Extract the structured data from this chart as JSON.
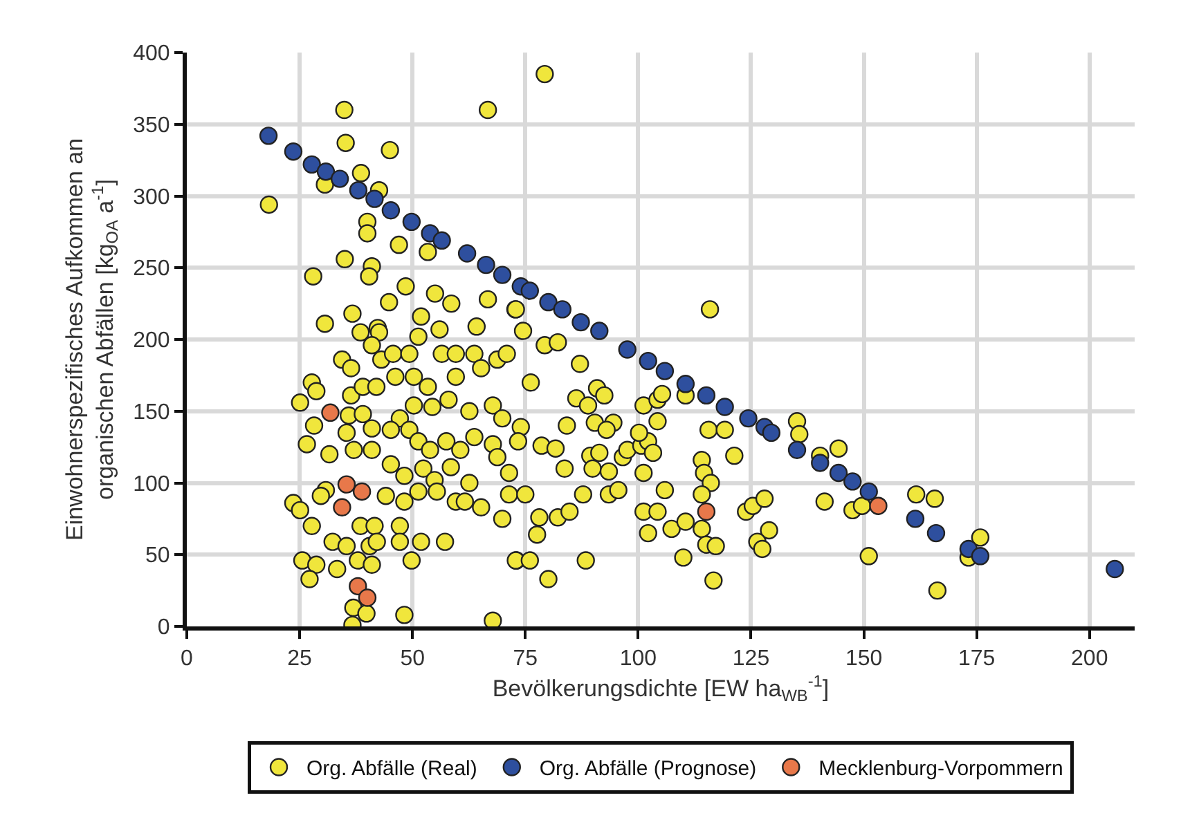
{
  "chart_data": {
    "type": "scatter",
    "xlabel": "Bevölkerungsdichte [EW ha$_{WB}$$^{-1}$]",
    "ylabel": "Einwohnerspezifisches Aufkommen an organischen Abfällen [kg$_{OA}$ a$^{-1}$]",
    "xlim": [
      0,
      210
    ],
    "ylim": [
      0,
      400
    ],
    "xticks": [
      0,
      25,
      50,
      75,
      100,
      125,
      150,
      175,
      200
    ],
    "yticks": [
      0,
      50,
      100,
      150,
      200,
      250,
      300,
      350,
      400
    ],
    "grid": true,
    "legend": "bottom",
    "marker": "circle",
    "series": [
      {
        "name": "Org. Abfälle (Real)",
        "color": "#f0e63c",
        "x": [
          34.9,
          35.2,
          45,
          66.7,
          18.2,
          38.6,
          30.6,
          42.6,
          40,
          40,
          47,
          35,
          41,
          40.4,
          28,
          53.4,
          48.5,
          30.6,
          36.7,
          44.8,
          55,
          58.6,
          66.7,
          64.2,
          56,
          51.9,
          42.3,
          72.8,
          27.7,
          28.7,
          25.1,
          28.2,
          26.6,
          31.6,
          34.4,
          36.4,
          36.4,
          35.9,
          35.4,
          39,
          37,
          41,
          41,
          38.5,
          42.6,
          41,
          43.1,
          39,
          42,
          45.7,
          49.3,
          46.2,
          50.3,
          53.4,
          51.3,
          56.5,
          59.6,
          63.7,
          65.2,
          68.8,
          70.9,
          59.6,
          58,
          62.6,
          67.8,
          69.9,
          54.4,
          50.3,
          47.2,
          45.2,
          49.3,
          51.3,
          53.9,
          57.5,
          60.6,
          63.7,
          67.8,
          68.8,
          45.2,
          48.2,
          52.4,
          54.9,
          58.5,
          62.6,
          44.1,
          48.2,
          51.3,
          55.4,
          59.6,
          61.6,
          65.2,
          69.9,
          71.4,
          71.4,
          23.6,
          25.1,
          27.7,
          30.8,
          29.7,
          38.5,
          41.6,
          47.2,
          47.2,
          51.9,
          57.2,
          32.3,
          35.4,
          40.5,
          42.1,
          25.6,
          28.7,
          27.2,
          33.3,
          37.9,
          41,
          49.8,
          36.9,
          36.7,
          48.2,
          67.8,
          39.8,
          73,
          79.3,
          115.9,
          72.9,
          74.5,
          79.3,
          82.2,
          87.1,
          76.2,
          86.3,
          90.9,
          88.9,
          92.5,
          84.2,
          90.4,
          94.5,
          93,
          74,
          78.6,
          81.7,
          73.4,
          83.7,
          89.4,
          91.4,
          89.9,
          93.5,
          96.6,
          97.6,
          100.7,
          102.2,
          103.3,
          101.2,
          101.2,
          104.3,
          105.3,
          104.3,
          100.2,
          110.5,
          75,
          78.1,
          82.2,
          84.8,
          87.8,
          93.5,
          95.6,
          101.2,
          104.3,
          105.9,
          102.2,
          107.4,
          110.5,
          114.1,
          114.6,
          116.1,
          114.1,
          114.1,
          115.1,
          117.2,
          115.6,
          119.2,
          121.3,
          116.7,
          110,
          77.6,
          72.9,
          76,
          88.4,
          80.1,
          123.9,
          125.4,
          128,
          129,
          126.4,
          127.5,
          135.2,
          135.7,
          140.3,
          144.4,
          141.3,
          147.5,
          149.6,
          151.1,
          161.6,
          165.7,
          166.3,
          175.8,
          173.2
        ],
        "values": [
          360,
          337,
          332,
          360,
          294,
          316,
          308,
          304,
          282,
          274,
          266,
          256,
          251,
          244,
          244,
          261,
          237,
          211,
          218,
          226,
          232,
          225,
          228,
          209,
          207,
          216,
          208,
          221,
          170,
          164,
          156,
          140,
          127,
          120,
          186,
          180,
          161,
          147,
          135,
          148,
          123,
          138,
          123,
          205,
          205,
          196,
          186,
          167,
          167,
          190,
          190,
          174,
          174,
          167,
          202,
          190,
          190,
          190,
          180,
          186,
          190,
          174,
          158,
          150,
          154,
          145,
          153,
          154,
          145,
          137,
          137,
          129,
          123,
          129,
          123,
          132,
          127,
          118,
          113,
          105,
          110,
          102,
          111,
          100,
          91,
          87,
          94,
          94,
          87,
          87,
          83,
          75,
          107,
          92,
          86,
          81,
          70,
          95,
          91,
          70,
          70,
          70,
          59,
          59,
          59,
          59,
          56,
          56,
          59,
          46,
          43,
          33,
          40,
          46,
          43,
          46,
          13,
          1,
          8,
          4,
          9,
          46,
          385,
          221,
          221,
          206,
          196,
          198,
          183,
          170,
          159,
          166,
          154,
          161,
          140,
          142,
          142,
          137,
          139,
          126,
          124,
          129,
          110,
          119,
          121,
          110,
          108,
          118,
          123,
          126,
          129,
          121,
          107,
          154,
          158,
          162,
          143,
          135,
          161,
          92,
          76,
          76,
          80,
          92,
          92,
          95,
          80,
          80,
          95,
          65,
          68,
          73,
          116,
          107,
          100,
          92,
          68,
          57,
          56,
          137,
          137,
          119,
          32,
          48,
          64,
          46,
          46,
          46,
          33,
          80,
          84,
          89,
          67,
          59,
          54,
          143,
          134,
          119,
          124,
          87,
          81,
          84,
          49,
          92,
          89,
          25,
          62,
          48
        ]
      },
      {
        "name": "Org. Abfälle (Prognose)",
        "color": "#2e4f9e",
        "x": [
          18.1,
          23.6,
          27.7,
          30.8,
          33.9,
          38,
          41.6,
          45.2,
          49.8,
          53.9,
          56.5,
          62.1,
          66.3,
          69.9,
          74,
          76,
          80.1,
          83.2,
          87.3,
          91.4,
          97.6,
          102.2,
          105.9,
          110.5,
          115.1,
          119.2,
          124.4,
          128,
          129.5,
          135.2,
          140.3,
          144.4,
          147.5,
          151.1,
          153.2,
          161.4,
          166,
          173.2,
          175.8,
          205.6
        ],
        "values": [
          342,
          331,
          322,
          317,
          312,
          304,
          298,
          290,
          282,
          274,
          269,
          260,
          252,
          245,
          237,
          234,
          226,
          221,
          212,
          206,
          193,
          185,
          178,
          169,
          161,
          153,
          145,
          139,
          135,
          123,
          114,
          107,
          101,
          94,
          null,
          75,
          65,
          54,
          49,
          40
        ]
      },
      {
        "name": "Mecklenburg-Vorpommern",
        "color": "#e8784a",
        "x": [
          31.8,
          35.4,
          38.8,
          34.4,
          37.9,
          40,
          115.1,
          153.2
        ],
        "values": [
          149,
          99,
          94,
          83,
          28,
          20,
          80,
          84
        ]
      }
    ]
  }
}
